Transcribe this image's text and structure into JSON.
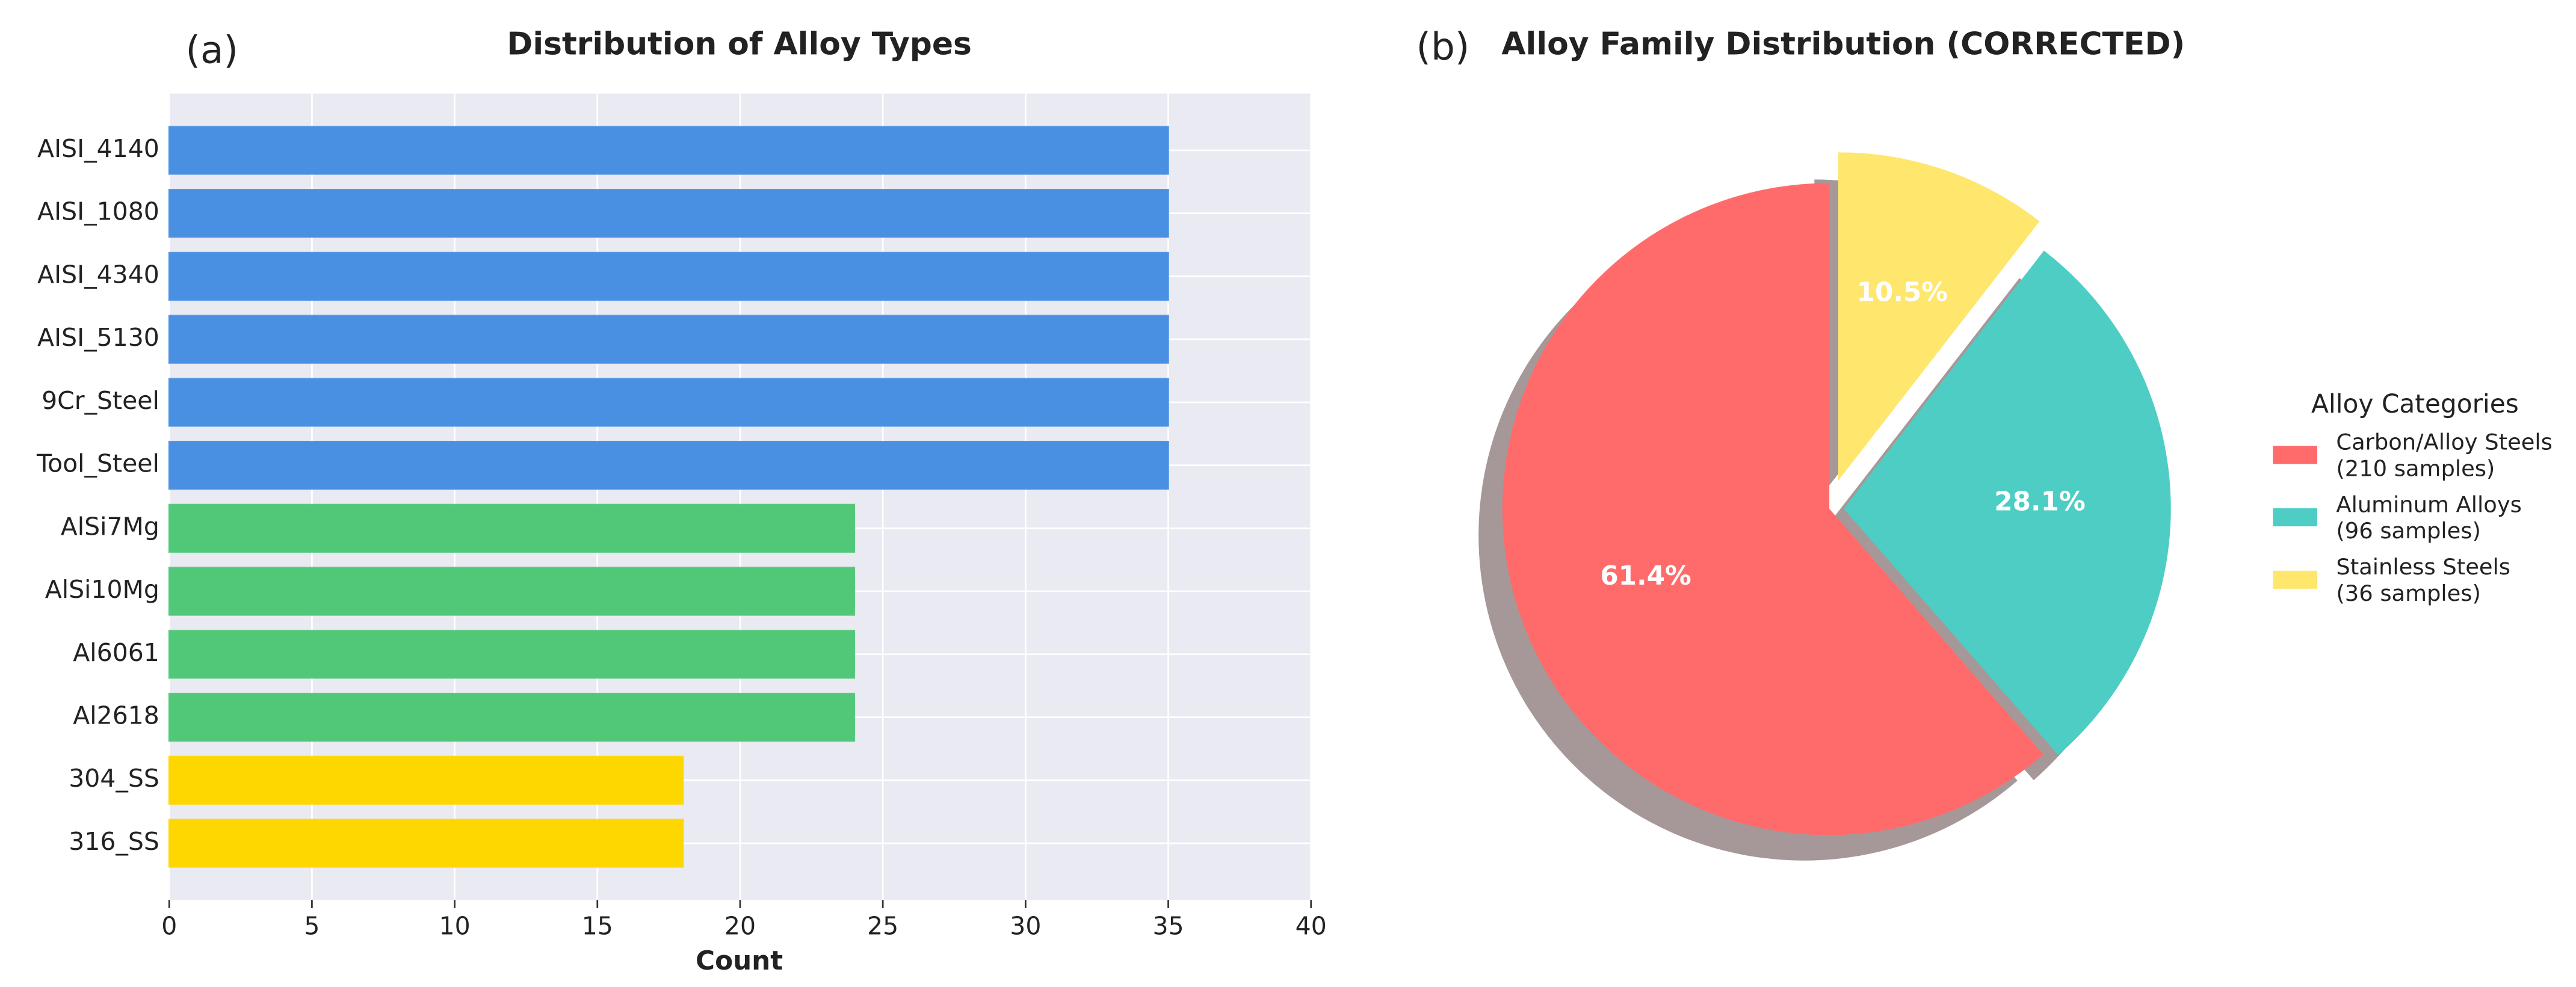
{
  "chart_data": [
    {
      "type": "barh",
      "panel_label": "(a)",
      "title": "Distribution of Alloy Types",
      "xlabel": "Count",
      "categories": [
        "AISI_4140",
        "AISI_1080",
        "AISI_4340",
        "AISI_5130",
        "9Cr_Steel",
        "Tool_Steel",
        "AlSi7Mg",
        "AlSi10Mg",
        "Al6061",
        "Al2618",
        "304_SS",
        "316_SS"
      ],
      "values": [
        35,
        35,
        35,
        35,
        35,
        35,
        24,
        24,
        24,
        24,
        18,
        18
      ],
      "colors": [
        "#4a90e2",
        "#4a90e2",
        "#4a90e2",
        "#4a90e2",
        "#4a90e2",
        "#4a90e2",
        "#50c878",
        "#50c878",
        "#50c878",
        "#50c878",
        "#ffd700",
        "#ffd700"
      ],
      "xlim": [
        0,
        40
      ],
      "xticks": [
        0,
        5,
        10,
        15,
        20,
        25,
        30,
        35,
        40
      ],
      "grid": true
    },
    {
      "type": "pie",
      "panel_label": "(b)",
      "title": "Alloy Family Distribution (CORRECTED)",
      "categories": [
        "Carbon/Alloy Steels",
        "Aluminum Alloys",
        "Stainless Steels"
      ],
      "sample_labels": [
        "(210 samples)",
        "(96 samples)",
        "(36 samples)"
      ],
      "values": [
        61.4,
        28.1,
        10.5
      ],
      "value_labels": [
        "61.4%",
        "28.1%",
        "10.5%"
      ],
      "colors": [
        "#ff6b6b",
        "#4ecdc4",
        "#ffe66d"
      ],
      "explode": [
        0,
        0.05,
        0.1
      ],
      "legend_title": "Alloy Categories",
      "legend_position": "right",
      "shadow": true
    }
  ]
}
